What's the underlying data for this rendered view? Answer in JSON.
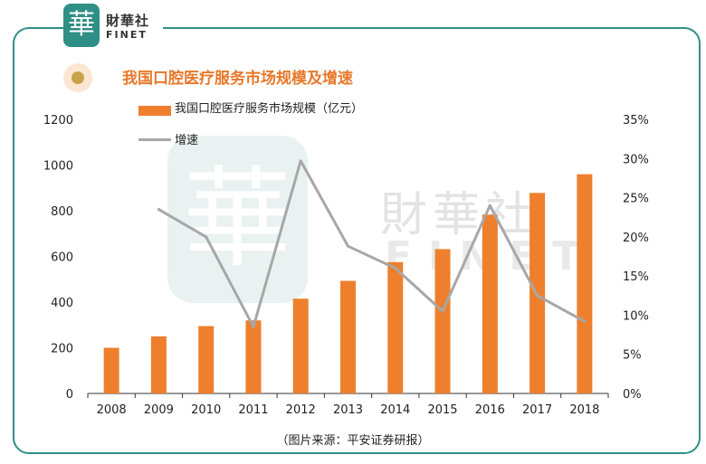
{
  "logo": {
    "seal_char": "華",
    "name_cn": "財華社",
    "name_en": "FINET"
  },
  "watermark": {
    "seal_char": "華",
    "name_cn": "財華社",
    "name_en": "FINET"
  },
  "source_note": "（图片来源：平安证券研报）",
  "colors": {
    "bar": "#ee7f2d",
    "line": "#a7a7a7",
    "frame": "#2f8f86",
    "title": "#e8782a"
  },
  "chart_data": {
    "type": "bar",
    "title": "我国口腔医疗服务市场规模及增速",
    "categories": [
      "2008",
      "2009",
      "2010",
      "2011",
      "2012",
      "2013",
      "2014",
      "2015",
      "2016",
      "2017",
      "2018"
    ],
    "series": [
      {
        "name": "我国口腔医疗服务市场规模（亿元）",
        "type": "bar",
        "axis": "left",
        "values": [
          200,
          250,
          295,
          320,
          415,
          493,
          575,
          632,
          783,
          878,
          960
        ]
      },
      {
        "name": "增速",
        "type": "line",
        "axis": "right",
        "values": [
          null,
          23.5,
          20.0,
          8.5,
          29.7,
          18.8,
          16.0,
          10.5,
          24.0,
          12.5,
          9.2
        ]
      }
    ],
    "yleft": {
      "min": 0,
      "max": 1200,
      "ticks": [
        "0",
        "200",
        "400",
        "600",
        "800",
        "1000",
        "1200"
      ]
    },
    "yright": {
      "min": 0,
      "max": 35,
      "ticks": [
        "0%",
        "5%",
        "10%",
        "15%",
        "20%",
        "25%",
        "30%",
        "35%"
      ]
    },
    "legend_position": "top-left"
  }
}
